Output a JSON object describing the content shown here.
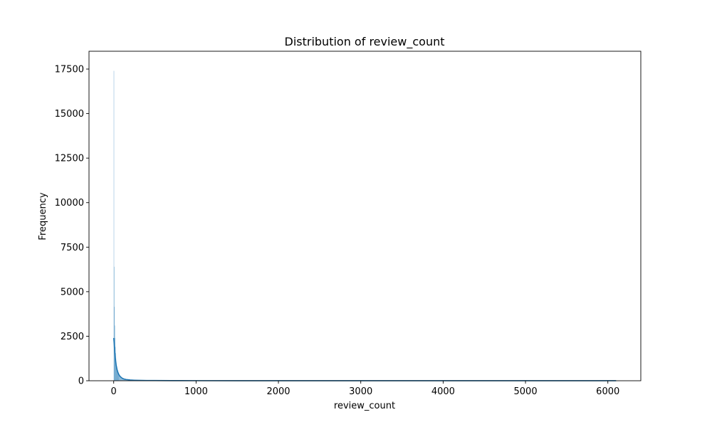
{
  "chart_data": {
    "type": "histogram",
    "title": "Distribution of review_count",
    "xlabel": "review_count",
    "ylabel": "Frequency",
    "xlim": [
      -300,
      6400
    ],
    "ylim": [
      0,
      18500
    ],
    "xticks": [
      0,
      1000,
      2000,
      3000,
      4000,
      5000,
      6000
    ],
    "yticks": [
      0,
      2500,
      5000,
      7500,
      10000,
      12500,
      15000,
      17500
    ],
    "grid": false,
    "legend": "none",
    "bar_color": "#1f77b4",
    "bins": [
      {
        "x0": 0,
        "x1": 3.5,
        "count": 17400
      },
      {
        "x0": 3.5,
        "x1": 7,
        "count": 6400
      },
      {
        "x0": 7,
        "x1": 10.5,
        "count": 4150
      },
      {
        "x0": 10.5,
        "x1": 14,
        "count": 3100
      },
      {
        "x0": 14,
        "x1": 17.5,
        "count": 2400
      },
      {
        "x0": 17.5,
        "x1": 21,
        "count": 1900
      },
      {
        "x0": 21,
        "x1": 24.5,
        "count": 1550
      },
      {
        "x0": 24.5,
        "x1": 28,
        "count": 1250
      },
      {
        "x0": 28,
        "x1": 31.5,
        "count": 1050
      },
      {
        "x0": 31.5,
        "x1": 35,
        "count": 900
      },
      {
        "x0": 35,
        "x1": 38.5,
        "count": 780
      },
      {
        "x0": 38.5,
        "x1": 42,
        "count": 680
      },
      {
        "x0": 42,
        "x1": 45.5,
        "count": 600
      },
      {
        "x0": 45.5,
        "x1": 49,
        "count": 530
      },
      {
        "x0": 49,
        "x1": 52.5,
        "count": 470
      },
      {
        "x0": 52.5,
        "x1": 56,
        "count": 420
      },
      {
        "x0": 56,
        "x1": 59.5,
        "count": 380
      },
      {
        "x0": 59.5,
        "x1": 63,
        "count": 340
      },
      {
        "x0": 63,
        "x1": 70,
        "count": 300
      },
      {
        "x0": 70,
        "x1": 80,
        "count": 240
      },
      {
        "x0": 80,
        "x1": 90,
        "count": 190
      },
      {
        "x0": 90,
        "x1": 100,
        "count": 155
      },
      {
        "x0": 100,
        "x1": 120,
        "count": 120
      },
      {
        "x0": 120,
        "x1": 140,
        "count": 90
      },
      {
        "x0": 140,
        "x1": 160,
        "count": 70
      },
      {
        "x0": 160,
        "x1": 190,
        "count": 55
      },
      {
        "x0": 190,
        "x1": 220,
        "count": 42
      },
      {
        "x0": 220,
        "x1": 260,
        "count": 32
      },
      {
        "x0": 260,
        "x1": 320,
        "count": 24
      },
      {
        "x0": 320,
        "x1": 400,
        "count": 17
      },
      {
        "x0": 400,
        "x1": 500,
        "count": 12
      },
      {
        "x0": 500,
        "x1": 700,
        "count": 8
      },
      {
        "x0": 700,
        "x1": 1000,
        "count": 5
      },
      {
        "x0": 1000,
        "x1": 1500,
        "count": 3
      },
      {
        "x0": 1500,
        "x1": 2500,
        "count": 2
      },
      {
        "x0": 2500,
        "x1": 4000,
        "count": 1
      },
      {
        "x0": 4000,
        "x1": 6100,
        "count": 1
      }
    ],
    "kde": {
      "x": [
        0,
        5,
        10,
        15,
        20,
        25,
        30,
        40,
        50,
        60,
        70,
        80,
        100,
        120,
        150,
        200,
        250,
        300,
        400,
        500,
        700,
        1000,
        1500,
        2000,
        3000,
        4000,
        5000,
        6100
      ],
      "y": [
        2400,
        2150,
        1800,
        1500,
        1250,
        1050,
        880,
        640,
        480,
        370,
        290,
        230,
        150,
        105,
        70,
        42,
        30,
        22,
        15,
        11,
        7,
        5,
        3,
        2,
        1.5,
        1,
        1,
        1
      ]
    }
  }
}
